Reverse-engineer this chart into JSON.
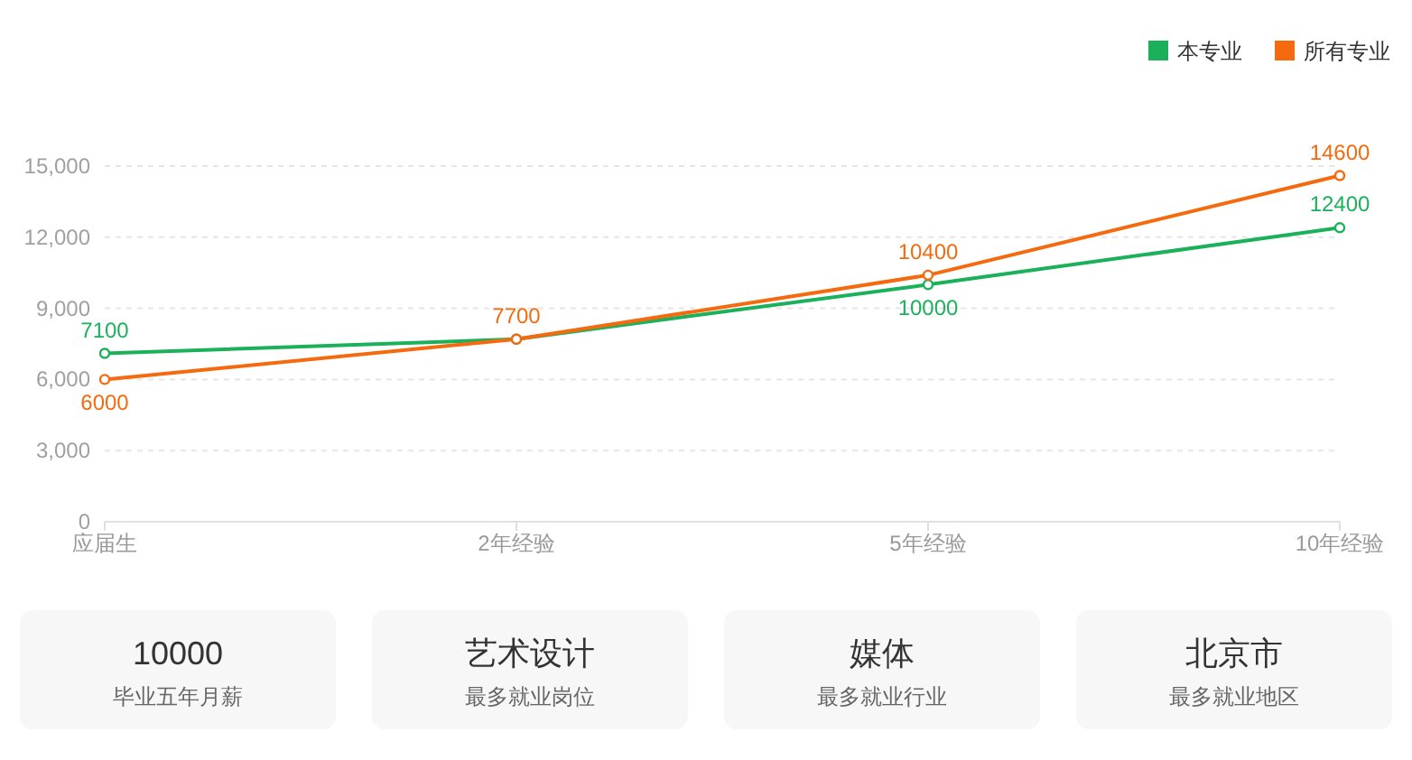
{
  "chart_data": [
    {
      "type": "line",
      "categories": [
        "应届生",
        "2年经验",
        "5年经验",
        "10年经验"
      ],
      "series": [
        {
          "name": "本专业",
          "color": "#1bb15a",
          "values": [
            7100,
            7700,
            10000,
            12400
          ],
          "value_labels": [
            "7100",
            null,
            "10000",
            "12400"
          ]
        },
        {
          "name": "所有专业",
          "color": "#f56a0f",
          "values": [
            6000,
            7700,
            10400,
            14600
          ],
          "value_labels": [
            "6000",
            "7700",
            "10400",
            "14600"
          ]
        }
      ],
      "ylim": [
        0,
        15000
      ],
      "yticks": [
        0,
        {
          "value": 3000,
          "label": "3,000"
        },
        {
          "value": 6000,
          "label": "6,000"
        },
        {
          "value": 9000,
          "label": "9,000"
        },
        {
          "value": 12000,
          "label": "12,000"
        },
        {
          "value": 15000,
          "label": "15,000"
        }
      ],
      "grid": "y",
      "legend": "top right",
      "marker": "circle",
      "line_style": "solid"
    },
    {
      "type": "other",
      "title": "10000",
      "subtitle": "毕业五年月薪"
    },
    {
      "type": "other",
      "title": "艺术设计",
      "subtitle": "最多就业岗位"
    },
    {
      "type": "other",
      "title": "媒体",
      "subtitle": "最多就业行业"
    },
    {
      "type": "other",
      "title": "北京市",
      "subtitle": "最多就业地区"
    }
  ]
}
